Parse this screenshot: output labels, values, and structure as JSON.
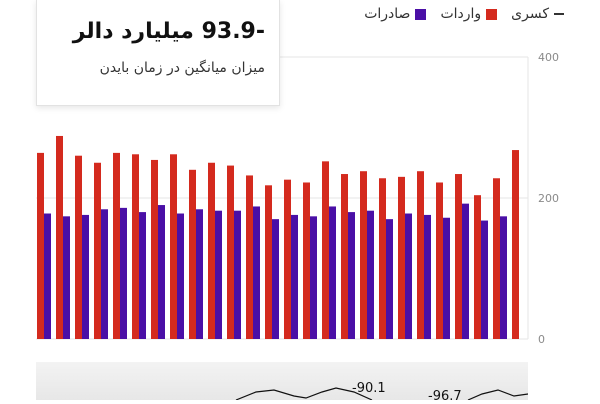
{
  "legend": {
    "exports": "صادرات",
    "imports": "واردات",
    "deficit": "کسری"
  },
  "callout": {
    "value": "-93.9 میلیارد دالر",
    "subtitle": "میزان میانگین در زمان بایدن"
  },
  "annotations": [
    "-90.1",
    "-96.7"
  ],
  "colors": {
    "exports": "#4a0fa6",
    "imports": "#d42a1e",
    "grid": "#e6e6e6"
  },
  "chart_data": {
    "type": "bar",
    "yticks": [
      0,
      200,
      400
    ],
    "ylim": [
      0,
      400
    ],
    "series": [
      {
        "name": "واردات",
        "values": [
          264,
          288,
          260,
          250,
          264,
          262,
          254,
          262,
          240,
          250,
          246,
          232,
          218,
          226,
          222,
          252,
          234,
          238,
          228,
          230,
          238,
          222,
          234,
          204,
          228,
          268
        ]
      },
      {
        "name": "صادرات",
        "values": [
          178,
          174,
          176,
          184,
          186,
          180,
          190,
          178,
          184,
          182,
          182,
          188,
          170,
          176,
          174,
          188,
          180,
          182,
          170,
          178,
          176,
          172,
          192,
          168,
          174,
          0
        ]
      }
    ]
  }
}
